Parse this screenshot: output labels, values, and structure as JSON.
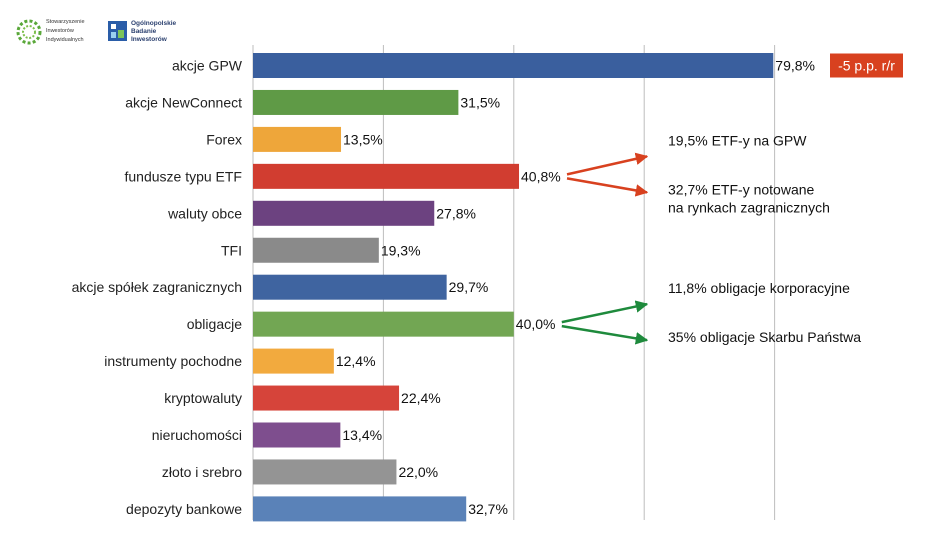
{
  "logos": {
    "sii_lines": [
      "Stowarzyszenie",
      "Inwestorów",
      "Indywidualnych"
    ],
    "obi_lines": [
      "Ogólnopolskie",
      "Badanie",
      "Inwestorów"
    ]
  },
  "chart_data": {
    "type": "bar",
    "orientation": "horizontal",
    "categories": [
      "akcje GPW",
      "akcje NewConnect",
      "Forex",
      "fundusze typu ETF",
      "waluty obce",
      "TFI",
      "akcje spółek zagranicznych",
      "obligacje",
      "instrumenty pochodne",
      "kryptowaluty",
      "nieruchomości",
      "złoto i srebro",
      "depozyty bankowe"
    ],
    "values": [
      79.8,
      31.5,
      13.5,
      40.8,
      27.8,
      19.3,
      29.7,
      40.0,
      12.4,
      22.4,
      13.4,
      22.0,
      32.7
    ],
    "value_labels": [
      "79,8%",
      "31,5%",
      "13,5%",
      "40,8%",
      "27,8%",
      "19,3%",
      "29,7%",
      "40,0%",
      "12,4%",
      "22,4%",
      "13,4%",
      "22,0%",
      "32,7%"
    ],
    "colors": [
      "#3a5f9e",
      "#5f9a46",
      "#eea63a",
      "#d13d30",
      "#6c4280",
      "#8a8a8a",
      "#3f64a0",
      "#72a653",
      "#f2aa3e",
      "#d6443a",
      "#7e4e8e",
      "#949494",
      "#5a82b8"
    ],
    "xlim": [
      0,
      100
    ],
    "x_gridlines": [
      0,
      20,
      40,
      60,
      80
    ],
    "grid": true,
    "badge": {
      "text": "-5 p.p. r/r",
      "category": "akcje GPW",
      "color": "#d8411f"
    },
    "annotations": [
      {
        "category": "fundusze typu ETF",
        "color": "#d8411f",
        "items": [
          "19,5% ETF-y na GPW",
          "32,7% ETF-y notowane|na rynkach zagranicznych"
        ]
      },
      {
        "category": "obligacje",
        "color": "#1e8a3c",
        "items": [
          "11,8% obligacje korporacyjne",
          "35% obligacje Skarbu Państwa"
        ]
      }
    ]
  }
}
